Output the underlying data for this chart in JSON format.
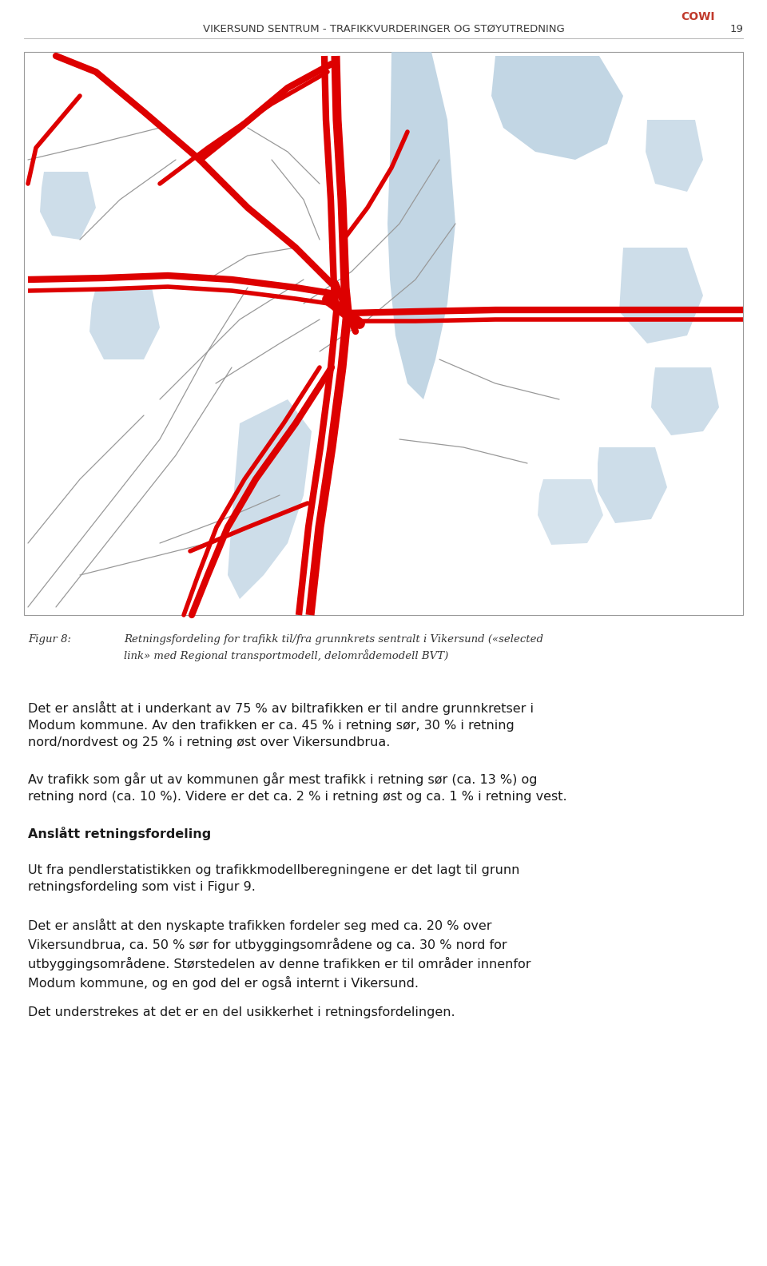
{
  "header_cowi": "COWI",
  "header_title": "VIKERSUND SENTRUM - TRAFIKKVURDERINGER OG STØYUTREDNING",
  "header_page": "19",
  "header_cowi_color": "#c0392b",
  "header_text_color": "#3a3a3a",
  "fig_label": "Figur 8:",
  "fig_caption": "Retningsfordeling for trafikk til/fra grunnkrets sentralt i Vikersund («selected\nlink» med Regional transportmodell, delområdemodell BVT)",
  "body_paragraphs": [
    "Det er anslått at i underkant av 75 % av biltrafikken er til andre grunnkretser i\nModum kommune. Av den trafikken er ca. 45 % i retning sør, 30 % i retning\nnord/nordvest og 25 % i retning øst over Vikersundbrua.",
    "Av trafikk som går ut av kommunen går mest trafikk i retning sør (ca. 13 %) og\nretning nord (ca. 10 %). Videre er det ca. 2 % i retning øst og ca. 1 % i retning vest.",
    "Anslått retningsfordeling",
    "Ut fra pendlerstatistikken og trafikkmodellberegningene er det lagt til grunn\nretningsfordeling som vist i Figur 9.",
    "Det er anslått at den nyskapte trafikken fordeler seg med ca. 20 % over\nVikersundbrua, ca. 50 % sør for utbyggingsområdene og ca. 30 % nord for\nutbyggingsområdene. Størstedelen av denne trafikken er til områder innenfor\nModum kommune, og en god del er også internt i Vikersund.",
    "Det understrekes at det er en del usikkerhet i retningsfordelingen."
  ],
  "bold_paragraph_index": 2,
  "background_color": "#ffffff",
  "text_color": "#1a1a1a",
  "map_border_color": "#999999",
  "header_line_color": "#aaaaaa",
  "fig_label_color": "#333333",
  "fig_caption_color": "#333333",
  "red_color": "#dd0000",
  "grey_road_color": "#999999",
  "water_color": "#b8cfe0"
}
